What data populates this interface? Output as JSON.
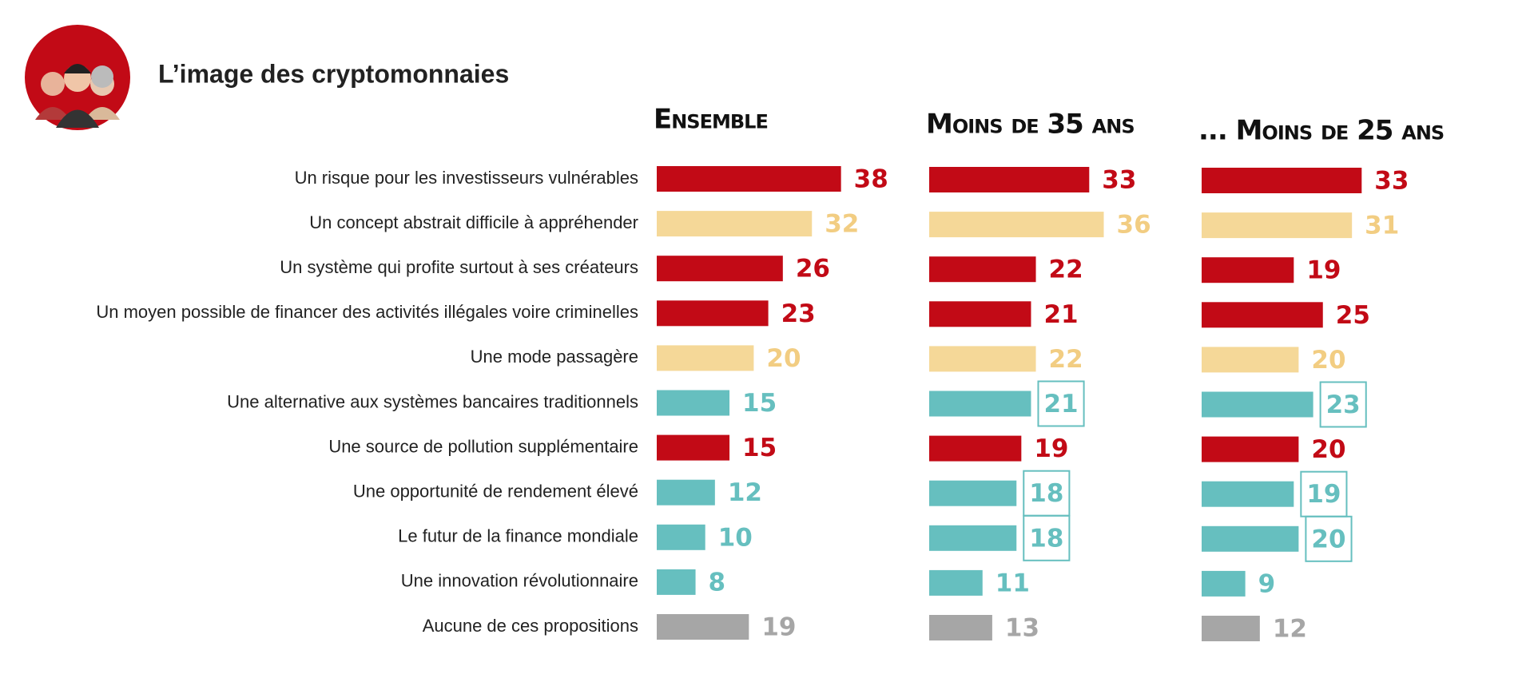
{
  "chart_data": {
    "type": "bar",
    "orientation": "horizontal",
    "title": "L’image des cryptomonnaies",
    "categories": [
      "Un risque pour les investisseurs vulnérables",
      "Un concept abstrait difficile à appréhender",
      "Un système qui profite surtout à ses créateurs",
      "Un moyen possible de financer des activités illégales voire criminelles",
      "Une mode passagère",
      "Une alternative aux systèmes bancaires traditionnels",
      "Une source de pollution supplémentaire",
      "Une opportunité de rendement élevé",
      "Le futur de la finance mondiale",
      "Une innovation révolutionnaire",
      "Aucune de ces propositions"
    ],
    "series": [
      {
        "name": "Ensemble",
        "values": [
          38,
          32,
          26,
          23,
          20,
          15,
          15,
          12,
          10,
          8,
          19
        ],
        "colors": [
          "#c20a16",
          "#f5d898",
          "#c20a16",
          "#c20a16",
          "#f5d898",
          "#66bfbf",
          "#c20a16",
          "#66bfbf",
          "#66bfbf",
          "#66bfbf",
          "#a6a6a6"
        ],
        "boxed": [
          false,
          false,
          false,
          false,
          false,
          false,
          false,
          false,
          false,
          false,
          false
        ]
      },
      {
        "name": "Moins de 35 ans",
        "values": [
          33,
          36,
          22,
          21,
          22,
          21,
          19,
          18,
          18,
          11,
          13
        ],
        "colors": [
          "#c20a16",
          "#f5d898",
          "#c20a16",
          "#c20a16",
          "#f5d898",
          "#66bfbf",
          "#c20a16",
          "#66bfbf",
          "#66bfbf",
          "#66bfbf",
          "#a6a6a6"
        ],
        "boxed": [
          false,
          false,
          false,
          false,
          false,
          true,
          false,
          true,
          true,
          false,
          false
        ]
      },
      {
        "name": "... Moins de 25 ans",
        "values": [
          33,
          31,
          19,
          25,
          20,
          23,
          20,
          19,
          20,
          9,
          12
        ],
        "colors": [
          "#c20a16",
          "#f5d898",
          "#c20a16",
          "#c20a16",
          "#f5d898",
          "#66bfbf",
          "#c20a16",
          "#66bfbf",
          "#66bfbf",
          "#66bfbf",
          "#a6a6a6"
        ],
        "boxed": [
          false,
          false,
          false,
          false,
          false,
          true,
          false,
          true,
          true,
          false,
          false
        ]
      }
    ]
  }
}
